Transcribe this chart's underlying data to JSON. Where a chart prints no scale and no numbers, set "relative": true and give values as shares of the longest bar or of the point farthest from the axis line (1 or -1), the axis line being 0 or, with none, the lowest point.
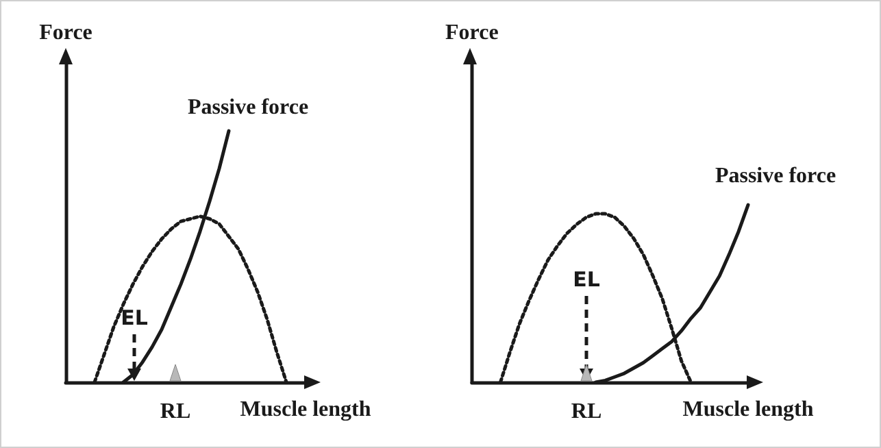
{
  "chart_data": [
    {
      "type": "line",
      "relative": true,
      "ylabel": "Force",
      "xlabel": "Muscle length",
      "marker": "none",
      "annotations": [
        "EL",
        "RL"
      ],
      "categories": [
        null,
        null,
        null,
        null,
        null,
        null,
        null,
        null,
        null,
        null,
        null,
        null,
        null,
        null,
        null,
        null,
        null,
        null,
        null,
        null,
        null,
        null,
        null,
        null,
        null,
        null
      ],
      "series": [
        {
          "color": "#1a1a1a",
          "line_style": "dotted",
          "values": [
            null,
            null,
            null,
            0,
            0.11,
            0.22,
            0.31,
            0.39,
            0.46,
            0.52,
            0.57,
            0.61,
            0.64,
            0.65,
            0.66,
            0.65,
            0.63,
            0.58,
            0.53,
            0.45,
            0.36,
            0.25,
            0.12,
            0,
            null,
            null
          ]
        },
        {
          "name": "Passive force",
          "color": "#1a1a1a",
          "line_style": "solid",
          "values": [
            null,
            null,
            null,
            null,
            null,
            null,
            0,
            0.03,
            0.08,
            0.14,
            0.21,
            0.3,
            0.39,
            0.49,
            0.6,
            0.72,
            0.85,
            1,
            null,
            null,
            null,
            null,
            null,
            null,
            null,
            null
          ]
        }
      ]
    },
    {
      "type": "line",
      "relative": true,
      "ylabel": "Force",
      "xlabel": "Muscle length",
      "marker": "none",
      "annotations": [
        "EL",
        "RL"
      ],
      "categories": [
        null,
        null,
        null,
        null,
        null,
        null,
        null,
        null,
        null,
        null,
        null,
        null,
        null,
        null,
        null,
        null,
        null,
        null,
        null,
        null,
        null,
        null,
        null,
        null,
        null,
        null,
        null,
        null,
        null,
        null
      ],
      "series": [
        {
          "color": "#1a1a1a",
          "line_style": "dotted",
          "values": [
            null,
            null,
            null,
            0,
            0.17,
            0.33,
            0.46,
            0.58,
            0.69,
            0.77,
            0.84,
            0.89,
            0.93,
            0.95,
            0.95,
            0.93,
            0.88,
            0.81,
            0.72,
            0.6,
            0.47,
            0.3,
            0.12,
            0,
            null,
            null,
            null,
            null,
            null,
            null
          ]
        },
        {
          "name": "Passive force",
          "color": "#1a1a1a",
          "line_style": "solid",
          "values": [
            null,
            null,
            null,
            null,
            null,
            null,
            null,
            null,
            null,
            null,
            null,
            null,
            null,
            0,
            0.01,
            0.03,
            0.05,
            0.08,
            0.11,
            0.15,
            0.19,
            0.23,
            0.29,
            0.36,
            0.42,
            0.51,
            0.6,
            0.72,
            0.85,
            1
          ]
        }
      ]
    }
  ]
}
